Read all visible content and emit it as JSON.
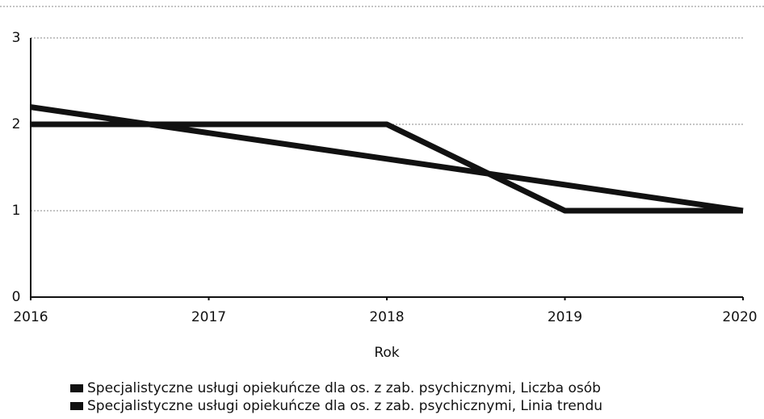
{
  "chart_data": {
    "type": "line",
    "x": [
      2016,
      2017,
      2018,
      2019,
      2020
    ],
    "xlim": [
      2016,
      2020
    ],
    "xticks": [
      2016,
      2017,
      2018,
      2019,
      2020
    ],
    "ylim": [
      0,
      3
    ],
    "yticks": [
      0,
      1,
      2,
      3
    ],
    "grid": true,
    "x_label": "Rok",
    "series": [
      {
        "name": "Specjalistyczne usługi opiekuńcze dla os. z zab. psychicznymi, Liczba osób",
        "color": "#111111",
        "values": [
          2,
          2,
          2,
          1,
          1
        ]
      },
      {
        "name": "Specjalistyczne usługi opiekuńcze dla os. z zab. psychicznymi, Linia trendu",
        "color": "#111111",
        "values": [
          2.2,
          1.9,
          1.6,
          1.3,
          1.0
        ]
      }
    ],
    "legend": "bottom"
  }
}
